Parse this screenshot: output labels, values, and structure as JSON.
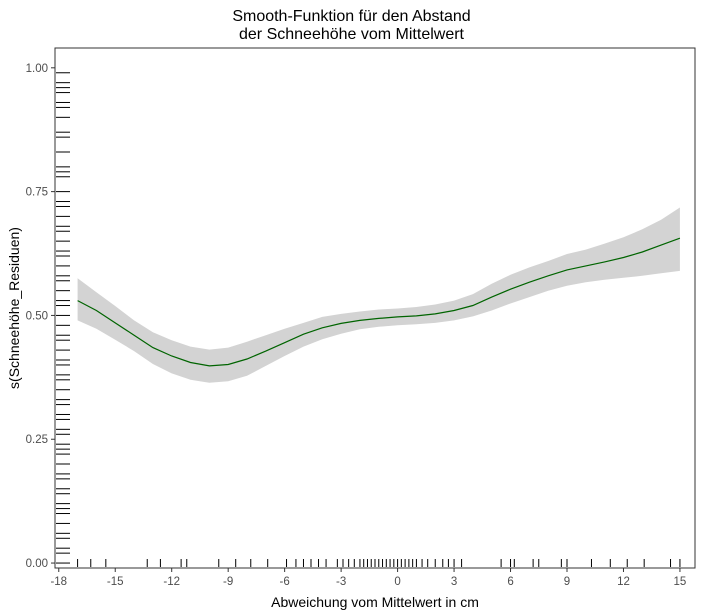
{
  "chart_data": {
    "type": "line",
    "title": "Smooth-Funktion für den Abstand\nder Schneehöhe vom Mittelwert",
    "title_lines": [
      "Smooth-Funktion für den Abstand",
      "der Schneehöhe vom Mittelwert"
    ],
    "xlabel": "Abweichung vom Mittelwert in cm",
    "ylabel": "s(Schneehöhe_Residuen)",
    "xlim": [
      -18.2,
      15.8
    ],
    "ylim": [
      -0.01,
      1.04
    ],
    "x_ticks": [
      -18,
      -15,
      -12,
      -9,
      -6,
      -3,
      0,
      3,
      6,
      9,
      12,
      15
    ],
    "x_tick_labels": [
      "-18",
      "-15",
      "-12",
      "-9",
      "-6",
      "-3",
      "0",
      "3",
      "6",
      "9",
      "12",
      "15"
    ],
    "y_ticks": [
      0.0,
      0.25,
      0.5,
      0.75,
      1.0
    ],
    "y_tick_labels": [
      "0.00",
      "0.25",
      "0.50",
      "0.75",
      "1.00"
    ],
    "grid": false,
    "colors": {
      "line": "#006400",
      "band": "#d3d3d3",
      "rug": "#000000",
      "axis": "#333333"
    },
    "series": [
      {
        "x": [
          -17,
          -16,
          -15,
          -14,
          -13,
          -12,
          -11,
          -10,
          -9,
          -8,
          -7,
          -6,
          -5,
          -4,
          -3,
          -2,
          -1,
          0,
          1,
          2,
          3,
          4,
          5,
          6,
          7,
          8,
          9,
          10,
          11,
          12,
          13,
          14,
          15
        ],
        "y": [
          0.53,
          0.51,
          0.485,
          0.46,
          0.435,
          0.418,
          0.405,
          0.398,
          0.401,
          0.412,
          0.428,
          0.445,
          0.462,
          0.475,
          0.484,
          0.49,
          0.494,
          0.497,
          0.499,
          0.503,
          0.51,
          0.52,
          0.537,
          0.553,
          0.567,
          0.58,
          0.592,
          0.6,
          0.608,
          0.617,
          0.628,
          0.642,
          0.656
        ],
        "lower": [
          0.49,
          0.473,
          0.451,
          0.428,
          0.402,
          0.383,
          0.37,
          0.364,
          0.367,
          0.378,
          0.398,
          0.418,
          0.437,
          0.452,
          0.463,
          0.472,
          0.477,
          0.48,
          0.482,
          0.485,
          0.49,
          0.498,
          0.51,
          0.524,
          0.537,
          0.55,
          0.56,
          0.567,
          0.572,
          0.576,
          0.58,
          0.585,
          0.59
        ],
        "upper": [
          0.575,
          0.547,
          0.519,
          0.49,
          0.466,
          0.45,
          0.437,
          0.431,
          0.435,
          0.447,
          0.46,
          0.473,
          0.485,
          0.497,
          0.503,
          0.508,
          0.512,
          0.514,
          0.517,
          0.522,
          0.53,
          0.543,
          0.564,
          0.582,
          0.597,
          0.61,
          0.624,
          0.633,
          0.645,
          0.658,
          0.674,
          0.693,
          0.718
        ]
      }
    ],
    "rug_x": [
      -17,
      -16.3,
      -15.5,
      -13.3,
      -12.6,
      -11.5,
      -11.2,
      -9.5,
      -8.6,
      -7.8,
      -6.9,
      -5.9,
      -5.4,
      -5.0,
      -4.6,
      -4.2,
      -3.8,
      -3.2,
      -2.9,
      -2.6,
      -2.3,
      -2.0,
      -1.8,
      -1.6,
      -1.4,
      -1.2,
      -1.0,
      -0.8,
      -0.6,
      -0.4,
      -0.2,
      0.0,
      0.2,
      0.4,
      0.6,
      0.8,
      1.0,
      1.3,
      1.6,
      2.0,
      2.4,
      2.7,
      3.0,
      3.4,
      5.5,
      6.0,
      6.2,
      7.2,
      7.5,
      8.7,
      9.0,
      10.3,
      11.3,
      12.2,
      13.1,
      14.5,
      15.0
    ],
    "rug_y": [
      0.0,
      0.02,
      0.03,
      0.05,
      0.06,
      0.08,
      0.1,
      0.11,
      0.12,
      0.14,
      0.15,
      0.17,
      0.18,
      0.2,
      0.22,
      0.23,
      0.24,
      0.26,
      0.27,
      0.29,
      0.3,
      0.32,
      0.33,
      0.35,
      0.37,
      0.38,
      0.4,
      0.41,
      0.43,
      0.45,
      0.46,
      0.48,
      0.5,
      0.52,
      0.53,
      0.55,
      0.57,
      0.58,
      0.6,
      0.62,
      0.63,
      0.65,
      0.67,
      0.68,
      0.7,
      0.72,
      0.73,
      0.75,
      0.78,
      0.79,
      0.8,
      0.83,
      0.86,
      0.87,
      0.9,
      0.92,
      0.93,
      0.95,
      0.96,
      0.97,
      0.99
    ]
  }
}
